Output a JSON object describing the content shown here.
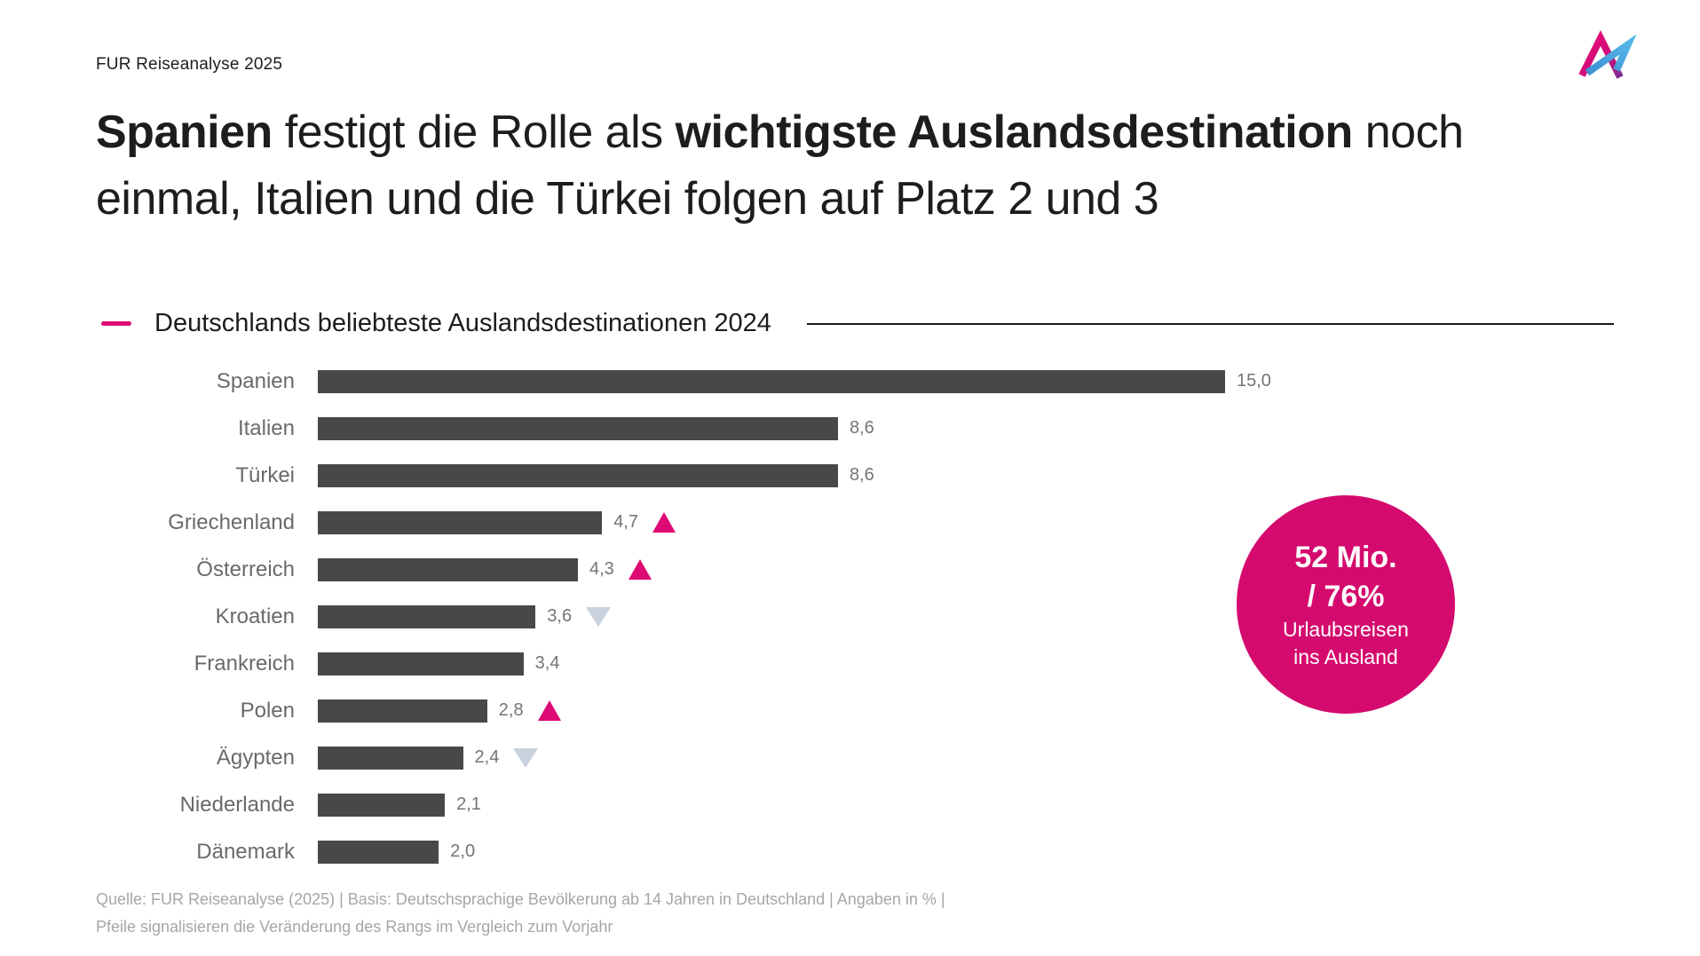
{
  "header": {
    "label": "FUR Reiseanalyse 2025"
  },
  "title": {
    "lines": [
      {
        "segments": [
          {
            "text": "Spanien",
            "bold": true
          },
          {
            "text": " festigt die Rolle als ",
            "bold": false
          },
          {
            "text": "wichtigste Auslandsdestination",
            "bold": true
          },
          {
            "text": " noch",
            "bold": false
          }
        ]
      },
      {
        "segments": [
          {
            "text": "einmal, Italien und die Türkei folgen auf Platz 2 und 3",
            "bold": false
          }
        ]
      }
    ]
  },
  "chart_data": {
    "type": "bar",
    "orientation": "horizontal",
    "title": "Deutschlands beliebteste Auslandsdestinationen 2024",
    "unit": "%",
    "xlim": [
      0,
      15
    ],
    "grid": false,
    "legend": "none",
    "categories": [
      "Spanien",
      "Italien",
      "Türkei",
      "Griechenland",
      "Österreich",
      "Kroatien",
      "Frankreich",
      "Polen",
      "Ägypten",
      "Niederlande",
      "Dänemark"
    ],
    "values": [
      15.0,
      8.6,
      8.6,
      4.7,
      4.3,
      3.6,
      3.4,
      2.8,
      2.4,
      2.1,
      2.0
    ],
    "value_labels": [
      "15,0",
      "8,6",
      "8,6",
      "4,7",
      "4,3",
      "3,6",
      "3,4",
      "2,8",
      "2,4",
      "2,1",
      "2,0"
    ],
    "rank_change": [
      "none",
      "none",
      "none",
      "up",
      "up",
      "down",
      "none",
      "up",
      "down",
      "none",
      "none"
    ],
    "bar_color": "#484848",
    "up_arrow_color": "#dd0a73",
    "down_arrow_color": "#c9d1dc"
  },
  "badge": {
    "line1": "52 Mio.",
    "line2": "/ 76%",
    "line3": "Urlaubsreisen",
    "line4": "ins Ausland",
    "color": "#d40a6e"
  },
  "footer": {
    "line1": "Quelle: FUR Reiseanalyse (2025) | Basis: Deutschsprachige Bevölkerung ab 14 Jahren in Deutschland | Angaben in % |",
    "line2": "Pfeile signalisieren die Veränderung des Rangs im Vergleich zum Vorjahr"
  },
  "colors": {
    "brand_pink": "#dd0a73",
    "badge_pink": "#d40a6e",
    "text_dark": "#1d1d1b",
    "bar_gray": "#484848",
    "label_gray": "#6a6a6a",
    "footer_gray": "#a6a6a6",
    "down_arrow_gray": "#c9d1dc",
    "logo_blue": "#45a7e0"
  }
}
